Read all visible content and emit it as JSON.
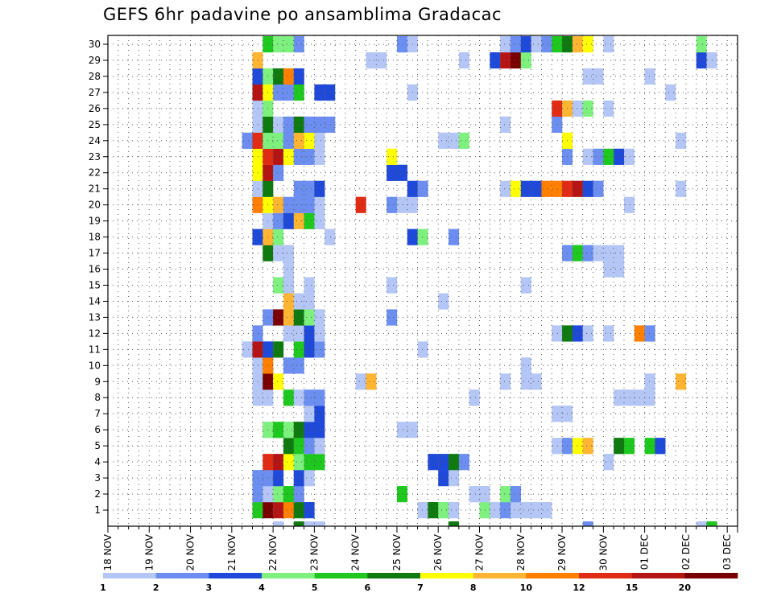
{
  "chart_data": {
    "type": "heatmap",
    "title": "GEFS 6hr padavine po ansamblima Gradacac",
    "y": {
      "min": 1,
      "max": 30,
      "ticks": [
        1,
        2,
        3,
        4,
        5,
        6,
        7,
        8,
        9,
        10,
        11,
        12,
        13,
        14,
        15,
        16,
        17,
        18,
        19,
        20,
        21,
        22,
        23,
        24,
        25,
        26,
        27,
        28,
        29,
        30
      ]
    },
    "x": {
      "labels": [
        "18 NOV",
        "19 NOV",
        "20 NOV",
        "21 NOV",
        "22 NOV",
        "23 NOV",
        "24 NOV",
        "25 NOV",
        "26 NOV",
        "27 NOV",
        "28 NOV",
        "29 NOV",
        "30 NOV",
        "01 DEC",
        "02 DEC",
        "03 DEC"
      ],
      "steps_per_day": 4,
      "n_steps": 61
    },
    "grid": true,
    "colorbar": {
      "labels": [
        "1",
        "2",
        "3",
        "4",
        "5",
        "6",
        "7",
        "8",
        "10",
        "12",
        "15",
        "20"
      ],
      "colors": [
        "#b4c6f5",
        "#6b8ef0",
        "#1f49d8",
        "#7ef07e",
        "#1ec81e",
        "#0f7a0f",
        "#ffff00",
        "#ffb432",
        "#ff7f00",
        "#e02c14",
        "#b41414",
        "#780000"
      ],
      "note": "values are precipitation levels indexed by colour bin 0-11"
    },
    "cells": [
      [
        1,
        32,
        4
      ],
      [
        1,
        33,
        11
      ],
      [
        1,
        34,
        10
      ],
      [
        1,
        35,
        8
      ],
      [
        1,
        36,
        5
      ],
      [
        1,
        37,
        2
      ],
      [
        1,
        48,
        0
      ],
      [
        1,
        49,
        5
      ],
      [
        1,
        50,
        3
      ],
      [
        1,
        51,
        0
      ],
      [
        1,
        54,
        3
      ],
      [
        1,
        55,
        0
      ],
      [
        1,
        56,
        1
      ],
      [
        1,
        57,
        0
      ],
      [
        1,
        58,
        0
      ],
      [
        1,
        59,
        0
      ],
      [
        1,
        60,
        0
      ],
      [
        2,
        32,
        1
      ],
      [
        2,
        33,
        0
      ],
      [
        2,
        34,
        3
      ],
      [
        2,
        35,
        4
      ],
      [
        2,
        36,
        1
      ],
      [
        2,
        46,
        4
      ],
      [
        2,
        53,
        0
      ],
      [
        2,
        54,
        0
      ],
      [
        2,
        56,
        3
      ],
      [
        2,
        57,
        1
      ],
      [
        3,
        32,
        1
      ],
      [
        3,
        33,
        1
      ],
      [
        3,
        34,
        2
      ],
      [
        3,
        36,
        2
      ],
      [
        3,
        37,
        0
      ],
      [
        3,
        50,
        2
      ],
      [
        3,
        51,
        0
      ],
      [
        4,
        33,
        9
      ],
      [
        4,
        34,
        10
      ],
      [
        4,
        35,
        6
      ],
      [
        4,
        36,
        3
      ],
      [
        4,
        37,
        4
      ],
      [
        4,
        38,
        4
      ],
      [
        4,
        49,
        2
      ],
      [
        4,
        50,
        2
      ],
      [
        4,
        51,
        5
      ],
      [
        4,
        52,
        1
      ],
      [
        4,
        66,
        0
      ],
      [
        5,
        35,
        5
      ],
      [
        5,
        36,
        4
      ],
      [
        5,
        37,
        1
      ],
      [
        5,
        38,
        0
      ],
      [
        5,
        61,
        0
      ],
      [
        5,
        62,
        1
      ],
      [
        5,
        63,
        6
      ],
      [
        5,
        64,
        7
      ],
      [
        5,
        67,
        5
      ],
      [
        5,
        68,
        4
      ],
      [
        5,
        70,
        4
      ],
      [
        5,
        71,
        2
      ],
      [
        6,
        33,
        3
      ],
      [
        6,
        34,
        4
      ],
      [
        6,
        35,
        3
      ],
      [
        6,
        36,
        5
      ],
      [
        6,
        37,
        2
      ],
      [
        6,
        38,
        2
      ],
      [
        6,
        46,
        0
      ],
      [
        6,
        47,
        0
      ],
      [
        7,
        37,
        0
      ],
      [
        7,
        38,
        2
      ],
      [
        7,
        61,
        0
      ],
      [
        7,
        62,
        0
      ],
      [
        8,
        32,
        0
      ],
      [
        8,
        33,
        0
      ],
      [
        8,
        35,
        4
      ],
      [
        8,
        36,
        0
      ],
      [
        8,
        37,
        1
      ],
      [
        8,
        38,
        1
      ],
      [
        8,
        53,
        0
      ],
      [
        8,
        67,
        0
      ],
      [
        8,
        68,
        0
      ],
      [
        8,
        69,
        0
      ],
      [
        8,
        70,
        0
      ],
      [
        9,
        32,
        0
      ],
      [
        9,
        33,
        11
      ],
      [
        9,
        34,
        6
      ],
      [
        9,
        42,
        0
      ],
      [
        9,
        43,
        7
      ],
      [
        9,
        56,
        0
      ],
      [
        9,
        58,
        0
      ],
      [
        9,
        59,
        0
      ],
      [
        9,
        70,
        0
      ],
      [
        9,
        73,
        7
      ],
      [
        10,
        32,
        0
      ],
      [
        10,
        33,
        8
      ],
      [
        10,
        35,
        1
      ],
      [
        10,
        36,
        1
      ],
      [
        10,
        58,
        0
      ],
      [
        11,
        31,
        0
      ],
      [
        11,
        32,
        10
      ],
      [
        11,
        33,
        2
      ],
      [
        11,
        34,
        5
      ],
      [
        11,
        36,
        4
      ],
      [
        11,
        37,
        2
      ],
      [
        11,
        38,
        1
      ],
      [
        11,
        48,
        0
      ],
      [
        12,
        32,
        1
      ],
      [
        12,
        35,
        0
      ],
      [
        12,
        36,
        0
      ],
      [
        12,
        37,
        2
      ],
      [
        12,
        38,
        0
      ],
      [
        12,
        61,
        0
      ],
      [
        12,
        62,
        5
      ],
      [
        12,
        63,
        2
      ],
      [
        12,
        64,
        0
      ],
      [
        12,
        66,
        0
      ],
      [
        12,
        69,
        8
      ],
      [
        12,
        70,
        1
      ],
      [
        13,
        33,
        1
      ],
      [
        13,
        34,
        11
      ],
      [
        13,
        35,
        7
      ],
      [
        13,
        36,
        5
      ],
      [
        13,
        37,
        3
      ],
      [
        13,
        38,
        0
      ],
      [
        13,
        45,
        1
      ],
      [
        14,
        35,
        7
      ],
      [
        14,
        36,
        0
      ],
      [
        14,
        37,
        0
      ],
      [
        14,
        50,
        0
      ],
      [
        15,
        34,
        3
      ],
      [
        15,
        35,
        0
      ],
      [
        15,
        37,
        0
      ],
      [
        15,
        45,
        0
      ],
      [
        15,
        58,
        0
      ],
      [
        16,
        35,
        0
      ],
      [
        16,
        66,
        0
      ],
      [
        16,
        67,
        0
      ],
      [
        17,
        33,
        5
      ],
      [
        17,
        34,
        0
      ],
      [
        17,
        35,
        0
      ],
      [
        17,
        62,
        1
      ],
      [
        17,
        63,
        4
      ],
      [
        17,
        64,
        1
      ],
      [
        17,
        65,
        0
      ],
      [
        17,
        66,
        0
      ],
      [
        17,
        67,
        0
      ],
      [
        18,
        32,
        2
      ],
      [
        18,
        33,
        7
      ],
      [
        18,
        34,
        3
      ],
      [
        18,
        39,
        0
      ],
      [
        18,
        47,
        2
      ],
      [
        18,
        48,
        3
      ],
      [
        18,
        51,
        1
      ],
      [
        19,
        33,
        0
      ],
      [
        19,
        34,
        1
      ],
      [
        19,
        35,
        2
      ],
      [
        19,
        36,
        7
      ],
      [
        19,
        37,
        4
      ],
      [
        19,
        38,
        0
      ],
      [
        20,
        32,
        8
      ],
      [
        20,
        33,
        6
      ],
      [
        20,
        34,
        7
      ],
      [
        20,
        35,
        1
      ],
      [
        20,
        36,
        1
      ],
      [
        20,
        37,
        1
      ],
      [
        20,
        38,
        0
      ],
      [
        20,
        42,
        9
      ],
      [
        20,
        45,
        1
      ],
      [
        20,
        46,
        0
      ],
      [
        20,
        47,
        0
      ],
      [
        20,
        68,
        0
      ],
      [
        21,
        32,
        0
      ],
      [
        21,
        33,
        5
      ],
      [
        21,
        36,
        1
      ],
      [
        21,
        37,
        1
      ],
      [
        21,
        38,
        2
      ],
      [
        21,
        47,
        2
      ],
      [
        21,
        48,
        1
      ],
      [
        21,
        56,
        0
      ],
      [
        21,
        57,
        6
      ],
      [
        21,
        58,
        2
      ],
      [
        21,
        59,
        2
      ],
      [
        21,
        60,
        8
      ],
      [
        21,
        61,
        8
      ],
      [
        21,
        62,
        9
      ],
      [
        21,
        63,
        10
      ],
      [
        21,
        64,
        2
      ],
      [
        21,
        65,
        1
      ],
      [
        21,
        73,
        0
      ],
      [
        22,
        32,
        6
      ],
      [
        22,
        33,
        10
      ],
      [
        22,
        34,
        1
      ],
      [
        22,
        45,
        2
      ],
      [
        22,
        46,
        2
      ],
      [
        23,
        32,
        6
      ],
      [
        23,
        33,
        9
      ],
      [
        23,
        34,
        10
      ],
      [
        23,
        35,
        6
      ],
      [
        23,
        36,
        1
      ],
      [
        23,
        37,
        1
      ],
      [
        23,
        38,
        0
      ],
      [
        23,
        45,
        6
      ],
      [
        23,
        62,
        1
      ],
      [
        23,
        64,
        0
      ],
      [
        23,
        65,
        1
      ],
      [
        23,
        66,
        4
      ],
      [
        23,
        67,
        2
      ],
      [
        23,
        68,
        0
      ],
      [
        24,
        31,
        1
      ],
      [
        24,
        32,
        9
      ],
      [
        24,
        33,
        3
      ],
      [
        24,
        34,
        3
      ],
      [
        24,
        35,
        1
      ],
      [
        24,
        36,
        7
      ],
      [
        24,
        37,
        6
      ],
      [
        24,
        38,
        0
      ],
      [
        24,
        50,
        0
      ],
      [
        24,
        51,
        0
      ],
      [
        24,
        52,
        3
      ],
      [
        24,
        62,
        6
      ],
      [
        24,
        73,
        0
      ],
      [
        25,
        32,
        0
      ],
      [
        25,
        33,
        5
      ],
      [
        25,
        34,
        0
      ],
      [
        25,
        35,
        1
      ],
      [
        25,
        36,
        5
      ],
      [
        25,
        37,
        1
      ],
      [
        25,
        38,
        1
      ],
      [
        25,
        39,
        1
      ],
      [
        25,
        56,
        0
      ],
      [
        25,
        61,
        1
      ],
      [
        26,
        32,
        0
      ],
      [
        26,
        33,
        3
      ],
      [
        26,
        61,
        9
      ],
      [
        26,
        62,
        7
      ],
      [
        26,
        63,
        0
      ],
      [
        26,
        64,
        3
      ],
      [
        26,
        66,
        0
      ],
      [
        27,
        32,
        10
      ],
      [
        27,
        33,
        6
      ],
      [
        27,
        34,
        1
      ],
      [
        27,
        35,
        1
      ],
      [
        27,
        36,
        4
      ],
      [
        27,
        38,
        2
      ],
      [
        27,
        39,
        2
      ],
      [
        27,
        47,
        0
      ],
      [
        27,
        72,
        0
      ],
      [
        28,
        32,
        2
      ],
      [
        28,
        33,
        3
      ],
      [
        28,
        34,
        5
      ],
      [
        28,
        35,
        8
      ],
      [
        28,
        36,
        2
      ],
      [
        28,
        64,
        0
      ],
      [
        28,
        65,
        0
      ],
      [
        28,
        70,
        0
      ],
      [
        29,
        32,
        7
      ],
      [
        29,
        43,
        0
      ],
      [
        29,
        44,
        0
      ],
      [
        29,
        52,
        0
      ],
      [
        29,
        55,
        2
      ],
      [
        29,
        56,
        10
      ],
      [
        29,
        57,
        11
      ],
      [
        29,
        58,
        3
      ],
      [
        29,
        75,
        2
      ],
      [
        29,
        76,
        0
      ],
      [
        30,
        33,
        4
      ],
      [
        30,
        34,
        3
      ],
      [
        30,
        35,
        3
      ],
      [
        30,
        36,
        1
      ],
      [
        30,
        46,
        1
      ],
      [
        30,
        47,
        0
      ],
      [
        30,
        56,
        0
      ],
      [
        30,
        57,
        1
      ],
      [
        30,
        58,
        2
      ],
      [
        30,
        59,
        0
      ],
      [
        30,
        60,
        1
      ],
      [
        30,
        61,
        4
      ],
      [
        30,
        62,
        5
      ],
      [
        30,
        63,
        7
      ],
      [
        30,
        64,
        6
      ],
      [
        30,
        66,
        0
      ],
      [
        30,
        75,
        3
      ],
      [
        0,
        34,
        0
      ],
      [
        0,
        36,
        5
      ],
      [
        0,
        37,
        0
      ],
      [
        0,
        38,
        0
      ],
      [
        0,
        51,
        5
      ],
      [
        0,
        64,
        1
      ],
      [
        0,
        75,
        0
      ],
      [
        0,
        76,
        4
      ]
    ]
  }
}
